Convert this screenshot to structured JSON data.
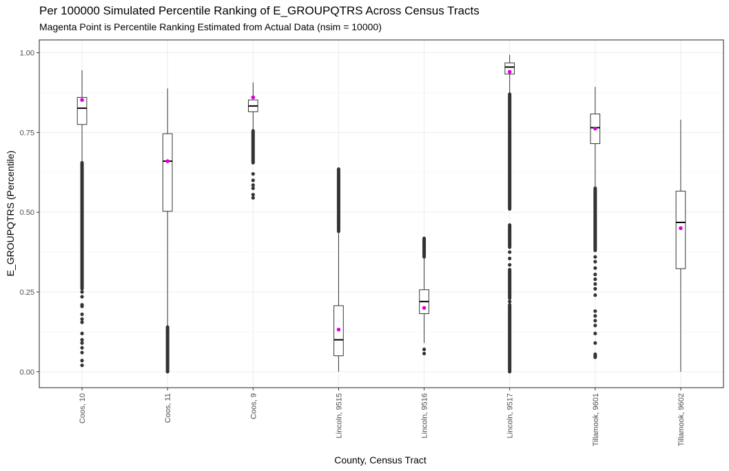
{
  "chart_data": {
    "type": "boxplot",
    "title": "Per 100000 Simulated Percentile Ranking of E_GROUPQTRS Across Census Tracts",
    "subtitle": "Magenta Point is Percentile Ranking Estimated from Actual Data (nsim = 10000)",
    "xlabel": "County, Census Tract",
    "ylabel": "E_GROUPQTRS (Percentile)",
    "ylim": [
      -0.05,
      1.04
    ],
    "yticks": [
      0.0,
      0.25,
      0.5,
      0.75,
      1.0
    ],
    "ytick_labels": [
      "0.00",
      "0.25",
      "0.50",
      "0.75",
      "1.00"
    ],
    "grid": true,
    "colors": {
      "box": "#333333",
      "outlier": "#333333",
      "actual_point": "#dd00dd",
      "grid_major": "#ebebeb",
      "grid_minor": "#f5f5f5"
    },
    "categories": [
      "Coos, 10",
      "Coos, 11",
      "Coos, 9",
      "Lincoln, 9515",
      "Lincoln, 9516",
      "Lincoln, 9517",
      "Tillamook, 9601",
      "Tillamook, 9602"
    ],
    "boxes": [
      {
        "category": "Coos, 10",
        "whisker_low": 0.66,
        "q1": 0.775,
        "median": 0.826,
        "q3": 0.86,
        "whisker_high": 0.945,
        "actual": 0.852,
        "outliers_dense": [
          [
            0.26,
            0.655
          ]
        ],
        "outliers_sparse": [
          0.02,
          0.035,
          0.06,
          0.075,
          0.09,
          0.1,
          0.12,
          0.155,
          0.165,
          0.18,
          0.205,
          0.21,
          0.235,
          0.25
        ]
      },
      {
        "category": "Coos, 11",
        "whisker_low": 0.14,
        "q1": 0.503,
        "median": 0.66,
        "q3": 0.746,
        "whisker_high": 0.888,
        "actual": 0.66,
        "outliers_dense": [
          [
            0.0,
            0.14
          ]
        ],
        "outliers_sparse": []
      },
      {
        "category": "Coos, 9",
        "whisker_low": 0.76,
        "q1": 0.815,
        "median": 0.833,
        "q3": 0.852,
        "whisker_high": 0.907,
        "actual": 0.86,
        "outliers_dense": [
          [
            0.655,
            0.755
          ]
        ],
        "outliers_sparse": [
          0.545,
          0.555,
          0.575,
          0.585,
          0.6,
          0.62
        ]
      },
      {
        "category": "Lincoln, 9515",
        "whisker_low": 0.0,
        "q1": 0.05,
        "median": 0.1,
        "q3": 0.207,
        "whisker_high": 0.44,
        "actual": 0.132,
        "outliers_dense": [
          [
            0.44,
            0.635
          ]
        ],
        "outliers_sparse": []
      },
      {
        "category": "Lincoln, 9516",
        "whisker_low": 0.09,
        "q1": 0.182,
        "median": 0.22,
        "q3": 0.257,
        "whisker_high": 0.36,
        "actual": 0.2,
        "outliers_dense": [
          [
            0.36,
            0.418
          ]
        ],
        "outliers_sparse": [
          0.057,
          0.07
        ]
      },
      {
        "category": "Lincoln, 9517",
        "whisker_low": 0.87,
        "q1": 0.933,
        "median": 0.955,
        "q3": 0.968,
        "whisker_high": 0.993,
        "actual": 0.94,
        "outliers_dense": [
          [
            0.0,
            0.21
          ],
          [
            0.23,
            0.32
          ],
          [
            0.39,
            0.46
          ],
          [
            0.51,
            0.87
          ]
        ],
        "outliers_sparse": [
          0.22,
          0.335,
          0.355,
          0.375
        ]
      },
      {
        "category": "Tillamook, 9601",
        "whisker_low": 0.575,
        "q1": 0.715,
        "median": 0.765,
        "q3": 0.808,
        "whisker_high": 0.893,
        "actual": 0.762,
        "outliers_dense": [
          [
            0.38,
            0.575
          ],
          [
            0.045,
            0.055
          ]
        ],
        "outliers_sparse": [
          0.09,
          0.12,
          0.145,
          0.16,
          0.175,
          0.19,
          0.24,
          0.26,
          0.275,
          0.29,
          0.305,
          0.325,
          0.345,
          0.36
        ]
      },
      {
        "category": "Tillamook, 9602",
        "whisker_low": 0.0,
        "q1": 0.323,
        "median": 0.468,
        "q3": 0.566,
        "whisker_high": 0.79,
        "actual": 0.45,
        "outliers_dense": [],
        "outliers_sparse": []
      }
    ]
  }
}
